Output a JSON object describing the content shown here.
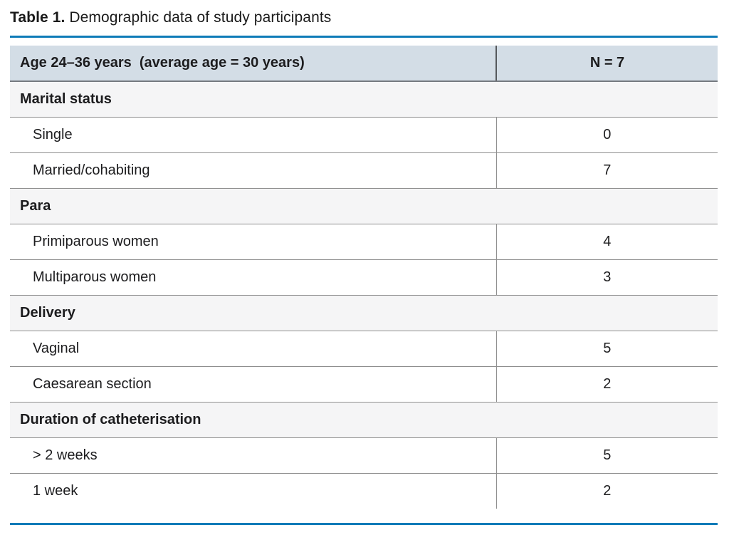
{
  "caption": {
    "label": "Table 1.",
    "text": " Demographic data of study participants"
  },
  "colors": {
    "accent_blue": "#0e7bb8",
    "header_bg": "#d3dde6",
    "section_bg": "#f5f5f6",
    "border_gray": "#8f8f8f",
    "text": "#1c1c1e"
  },
  "table": {
    "header": {
      "col1": "Age 24–36 years  (average age = 30 years)",
      "col2": "N = 7"
    },
    "sections": [
      {
        "label": "Marital status",
        "rows": [
          {
            "label": "Single",
            "value": "0"
          },
          {
            "label": "Married/cohabiting",
            "value": "7"
          }
        ]
      },
      {
        "label": "Para",
        "rows": [
          {
            "label": "Primiparous women",
            "value": "4"
          },
          {
            "label": "Multiparous women",
            "value": "3"
          }
        ]
      },
      {
        "label": "Delivery",
        "rows": [
          {
            "label": "Vaginal",
            "value": "5"
          },
          {
            "label": "Caesarean section",
            "value": "2"
          }
        ]
      },
      {
        "label": "Duration of catheterisation",
        "rows": [
          {
            "label": "> 2 weeks",
            "value": "5"
          },
          {
            "label": "1 week",
            "value": "2"
          }
        ]
      }
    ]
  }
}
